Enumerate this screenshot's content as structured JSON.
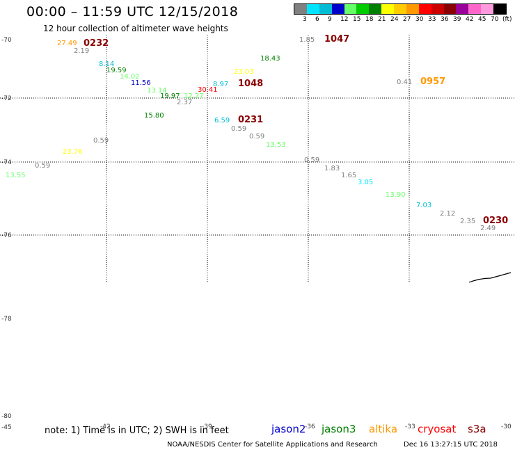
{
  "header": {
    "title": "00:00 – 11:59 UTC 12/15/2018",
    "subtitle": "12 hour collection of altimeter wave heights"
  },
  "legend": {
    "colors": [
      "#808080",
      "#00e5ff",
      "#00bcd4",
      "#0000cc",
      "#66ff66",
      "#00cc00",
      "#008000",
      "#ffff00",
      "#ffcc00",
      "#ff9900",
      "#ff0000",
      "#cc0000",
      "#8b0000",
      "#990099",
      "#ff66cc",
      "#ff99dd",
      "#000000"
    ],
    "labels": [
      "3",
      "6",
      "9",
      "12",
      "15",
      "18",
      "21",
      "24",
      "27",
      "30",
      "33",
      "36",
      "39",
      "42",
      "45",
      "70"
    ],
    "unit": "(ft)"
  },
  "map": {
    "lat_labels": [
      "-70",
      "-72",
      "-74",
      "-76",
      "-78",
      "-80"
    ],
    "lon_labels": [
      "-45",
      "-42",
      "-39",
      "-36",
      "-33",
      "-30"
    ],
    "coastline": true,
    "observations": [
      {
        "text": "27.49",
        "color": "#ff9900"
      },
      {
        "text": "0232",
        "color": "#8b0000"
      },
      {
        "text": "2.19",
        "color": "#808080"
      },
      {
        "text": "8.14",
        "color": "#00bcd4"
      },
      {
        "text": "19.59",
        "color": "#008000"
      },
      {
        "text": "14.02",
        "color": "#66ff66"
      },
      {
        "text": "11.56",
        "color": "#0000cc"
      },
      {
        "text": "13.14",
        "color": "#66ff66"
      },
      {
        "text": "19.97",
        "color": "#008000"
      },
      {
        "text": "12.27",
        "color": "#66ff66"
      },
      {
        "text": "2.37",
        "color": "#808080"
      },
      {
        "text": "30.41",
        "color": "#ff0000"
      },
      {
        "text": "8.97",
        "color": "#00bcd4"
      },
      {
        "text": "1048",
        "color": "#8b0000"
      },
      {
        "text": "23.03",
        "color": "#ffff00"
      },
      {
        "text": "18.43",
        "color": "#008000"
      },
      {
        "text": "1.85",
        "color": "#808080"
      },
      {
        "text": "1047",
        "color": "#8b0000"
      },
      {
        "text": "0.41",
        "color": "#808080"
      },
      {
        "text": "0957",
        "color": "#ff9900"
      },
      {
        "text": "15.80",
        "color": "#008000"
      },
      {
        "text": "6.59",
        "color": "#00bcd4"
      },
      {
        "text": "0231",
        "color": "#8b0000"
      },
      {
        "text": "0.59",
        "color": "#808080"
      },
      {
        "text": "0.59",
        "color": "#808080"
      },
      {
        "text": "13.53",
        "color": "#66ff66"
      },
      {
        "text": "0.59",
        "color": "#808080"
      },
      {
        "text": "23.76",
        "color": "#ffff00"
      },
      {
        "text": "0.59",
        "color": "#808080"
      },
      {
        "text": "13.55",
        "color": "#66ff66"
      },
      {
        "text": "0.59",
        "color": "#808080"
      },
      {
        "text": "1.83",
        "color": "#808080"
      },
      {
        "text": "1.65",
        "color": "#808080"
      },
      {
        "text": "3.05",
        "color": "#00e5ff"
      },
      {
        "text": "13.90",
        "color": "#66ff66"
      },
      {
        "text": "7.03",
        "color": "#00bcd4"
      },
      {
        "text": "2.12",
        "color": "#808080"
      },
      {
        "text": "2.35",
        "color": "#808080"
      },
      {
        "text": "0230",
        "color": "#8b0000"
      },
      {
        "text": "2.49",
        "color": "#808080"
      }
    ]
  },
  "note": "note: 1) Time is in UTC; 2) SWH is in feet",
  "satellites": [
    {
      "name": "jason2",
      "color": "#0000cc"
    },
    {
      "name": "jason3",
      "color": "#008000"
    },
    {
      "name": "altika",
      "color": "#ff9900"
    },
    {
      "name": "cryosat",
      "color": "#ff0000"
    },
    {
      "name": "s3a",
      "color": "#8b0000"
    }
  ],
  "footer": "NOAA/NESDIS Center for Satellite Applications and Research",
  "timestamp": "Dec 16 13:27:15 UTC 2018"
}
